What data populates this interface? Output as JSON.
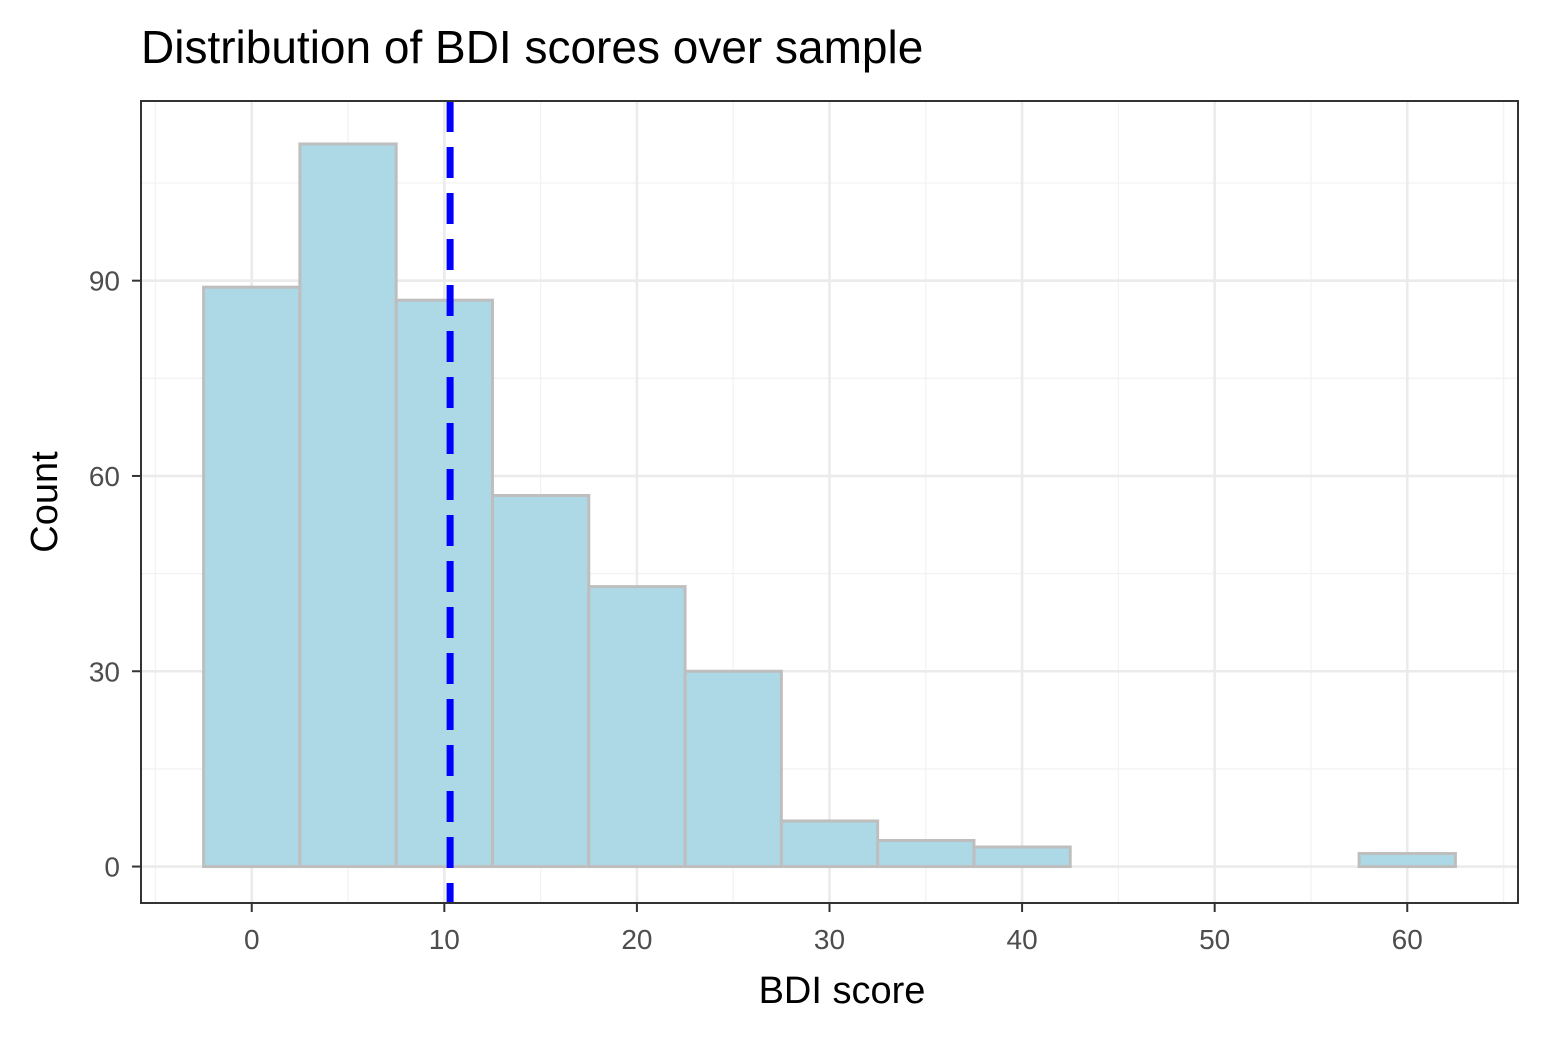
{
  "chart_data": {
    "type": "bar",
    "title": "Distribution of BDI scores over sample",
    "xlabel": "BDI score",
    "ylabel": "Count",
    "xlim": [
      -5.75,
      65.75
    ],
    "ylim": [
      -5.6,
      117.6
    ],
    "x_ticks": [
      0,
      10,
      20,
      30,
      40,
      50,
      60
    ],
    "y_ticks": [
      0,
      30,
      60,
      90
    ],
    "bin_width": 5,
    "bins": [
      {
        "center": 0,
        "count": 89
      },
      {
        "center": 5,
        "count": 111
      },
      {
        "center": 10,
        "count": 87
      },
      {
        "center": 15,
        "count": 57
      },
      {
        "center": 20,
        "count": 43
      },
      {
        "center": 25,
        "count": 30
      },
      {
        "center": 30,
        "count": 7
      },
      {
        "center": 35,
        "count": 4
      },
      {
        "center": 40,
        "count": 3
      },
      {
        "center": 45,
        "count": 0
      },
      {
        "center": 50,
        "count": 0
      },
      {
        "center": 55,
        "count": 0
      },
      {
        "center": 60,
        "count": 2
      }
    ],
    "reference_line": {
      "x": 10.3,
      "style": "dashed",
      "color": "#0000ff"
    },
    "grid": true,
    "colors": {
      "bar_fill": "#add8e6",
      "bar_border": "#bebebe",
      "panel_border": "#333333",
      "grid_major": "#ebebeb",
      "grid_minor": "#f2f2f2"
    }
  }
}
